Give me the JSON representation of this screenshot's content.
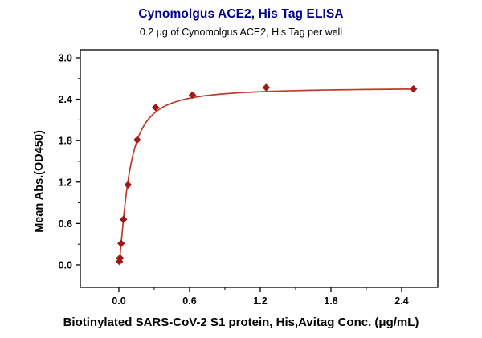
{
  "chart_data": {
    "type": "scatter",
    "title": "Cynomolgus ACE2, His Tag ELISA",
    "subtitle": "0.2 μg of Cynomolgus ACE2, His Tag per well",
    "xlabel": "Biotinylated SARS-CoV-2 S1 protein, His,Avitag Conc. (μg/mL)",
    "ylabel": "Mean Abs.(OD450)",
    "x": [
      0.0049,
      0.0098,
      0.0195,
      0.039,
      0.078,
      0.156,
      0.3125,
      0.625,
      1.25,
      2.5
    ],
    "y": [
      0.05,
      0.1,
      0.31,
      0.66,
      1.16,
      1.81,
      2.28,
      2.46,
      2.57,
      2.55
    ],
    "x_ticks": {
      "values": [
        0,
        0.6,
        1.2,
        1.8,
        2.4
      ],
      "labels": [
        "0.0",
        "0.6",
        "1.2",
        "1.8",
        "2.4"
      ],
      "minor": [
        0.3,
        0.9,
        1.5,
        2.1
      ]
    },
    "y_ticks": {
      "values": [
        0,
        0.6,
        1.2,
        1.8,
        2.4,
        3.0
      ],
      "labels": [
        "0.0",
        "0.6",
        "1.2",
        "1.8",
        "2.4",
        "3.0"
      ],
      "minor": [
        0.3,
        0.9,
        1.5,
        2.1,
        2.7
      ]
    },
    "xlim": [
      -0.327,
      2.707
    ],
    "ylim": [
      -0.326,
      3.116
    ],
    "grid": false,
    "legend": "none",
    "fit_curve": {
      "model": "4PL",
      "bottom": 0.02,
      "top": 2.57,
      "ec50": 0.085,
      "hill": 1.4,
      "x_range": [
        0.0049,
        2.5
      ]
    },
    "colors": {
      "title": "#00008b",
      "marker": "#9e1a1a",
      "line": "#c0392b",
      "axis": "#000000",
      "text": "#000000"
    }
  }
}
